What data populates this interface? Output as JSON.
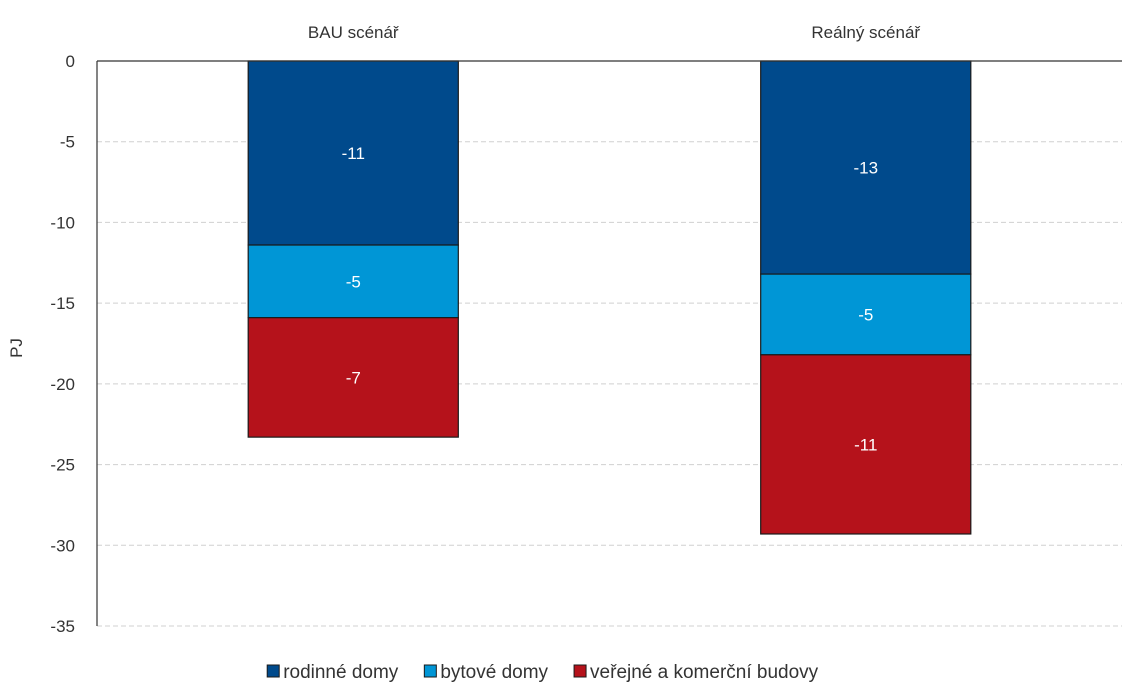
{
  "chart_data": {
    "type": "bar",
    "stacked": true,
    "categories": [
      "BAU scénář",
      "Reálný scénář"
    ],
    "category_axis_position": "top",
    "series": [
      {
        "name": "rodinné domy",
        "values": [
          -11.4,
          -13.2
        ],
        "labels": [
          "-11",
          "-13"
        ],
        "color": "#004a8c"
      },
      {
        "name": "bytové domy",
        "values": [
          -4.5,
          -5.0
        ],
        "labels": [
          "-5",
          "-5"
        ],
        "color": "#0096d6"
      },
      {
        "name": "veřejné a komerční budovy",
        "values": [
          -7.4,
          -11.1
        ],
        "labels": [
          "-7",
          "-11"
        ],
        "color": "#b5121b"
      }
    ],
    "ylabel": "PJ",
    "ylim": [
      -35,
      0
    ],
    "yticks": [
      0,
      -5,
      -10,
      -15,
      -20,
      -25,
      -30,
      -35
    ],
    "grid": true,
    "legend": "bottom"
  }
}
